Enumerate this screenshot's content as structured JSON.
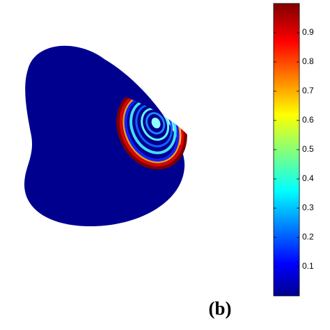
{
  "chart_data": {
    "type": "colorfield",
    "label": "(b)",
    "ylim": [
      0,
      1
    ],
    "yticks": [
      0.1,
      0.2,
      0.3,
      0.4,
      0.5,
      0.6,
      0.7,
      0.8,
      0.9
    ]
  }
}
